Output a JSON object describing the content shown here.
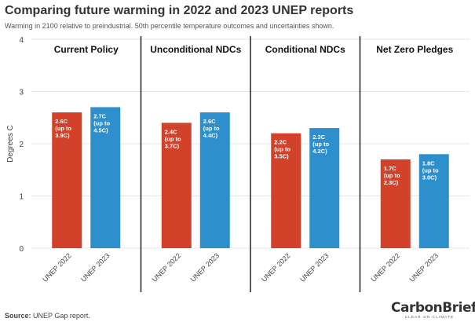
{
  "header": {
    "title": "Comparing future warming in 2022 and 2023 UNEP reports",
    "subtitle": "Warming in 2100 relative to preindustrial. 50th percentile temperature outcomes and uncertainties shown."
  },
  "footer": {
    "source_label": "Source:",
    "source_text": "UNEP Gap report.",
    "brand": "CarbonBrief",
    "brand_tagline": "CLEAR ON CLIMATE"
  },
  "colors": {
    "unep2022": "#d2422b",
    "unep2023": "#2d8fcc",
    "divider": "#222222",
    "grid": "#e4e4e4",
    "panel_label": "#111111",
    "bar_label": "#ffffff"
  },
  "chart_data": {
    "type": "bar",
    "ylabel": "Degrees C",
    "ylim": [
      0,
      4
    ],
    "yticks": [
      0,
      1,
      2,
      3,
      4
    ],
    "grid": true,
    "groups": [
      {
        "name": "Current Policy",
        "bars": [
          {
            "category": "UNEP 2022",
            "value": 2.6,
            "label_lines": [
              "2.6C",
              "(up to",
              "3.9C)"
            ]
          },
          {
            "category": "UNEP 2023",
            "value": 2.7,
            "label_lines": [
              "2.7C",
              "(up to",
              "4.5C)"
            ]
          }
        ]
      },
      {
        "name": "Unconditional NDCs",
        "bars": [
          {
            "category": "UNEP 2022",
            "value": 2.4,
            "label_lines": [
              "2.4C",
              "(up to",
              "3.7C)"
            ]
          },
          {
            "category": "UNEP 2023",
            "value": 2.6,
            "label_lines": [
              "2.6C",
              "(up to",
              "4.4C)"
            ]
          }
        ]
      },
      {
        "name": "Conditional NDCs",
        "bars": [
          {
            "category": "UNEP 2022",
            "value": 2.2,
            "label_lines": [
              "2.2C",
              "(up to",
              "3.5C)"
            ]
          },
          {
            "category": "UNEP 2023",
            "value": 2.3,
            "label_lines": [
              "2.3C",
              "(up to",
              "4.2C)"
            ]
          }
        ]
      },
      {
        "name": "Net Zero Pledges",
        "bars": [
          {
            "category": "UNEP 2022",
            "value": 1.7,
            "label_lines": [
              "1.7C",
              "(up to",
              "2.3C)"
            ]
          },
          {
            "category": "UNEP 2023",
            "value": 1.8,
            "label_lines": [
              "1.8C",
              "(up to",
              "3.0C)"
            ]
          }
        ]
      }
    ]
  }
}
